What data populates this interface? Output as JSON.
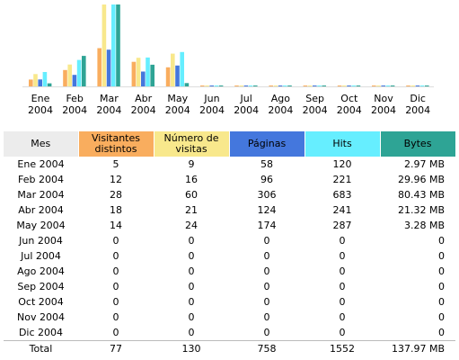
{
  "colors": {
    "visitors": "#f9ad5e",
    "visits": "#f8e88c",
    "pages": "#4477dd",
    "hits": "#66eeff",
    "bytes": "#2ea495",
    "month_header": "#ececec"
  },
  "chart_data": {
    "type": "bar",
    "categories": [
      "Ene 2004",
      "Feb 2004",
      "Mar 2004",
      "Abr 2004",
      "May 2004",
      "Jun 2004",
      "Jul 2004",
      "Ago 2004",
      "Sep 2004",
      "Oct 2004",
      "Nov 2004",
      "Dic 2004"
    ],
    "category_lines": [
      [
        "Ene",
        "2004"
      ],
      [
        "Feb",
        "2004"
      ],
      [
        "Mar",
        "2004"
      ],
      [
        "Abr",
        "2004"
      ],
      [
        "May",
        "2004"
      ],
      [
        "Jun",
        "2004"
      ],
      [
        "Jul",
        "2004"
      ],
      [
        "Ago",
        "2004"
      ],
      [
        "Sep",
        "2004"
      ],
      [
        "Oct",
        "2004"
      ],
      [
        "Nov",
        "2004"
      ],
      [
        "Dic",
        "2004"
      ]
    ],
    "series": [
      {
        "key": "visitors",
        "values": [
          5,
          12,
          28,
          18,
          14,
          0,
          0,
          0,
          0,
          0,
          0,
          0
        ]
      },
      {
        "key": "visits",
        "values": [
          9,
          16,
          60,
          21,
          24,
          0,
          0,
          0,
          0,
          0,
          0,
          0
        ]
      },
      {
        "key": "pages",
        "values": [
          58,
          96,
          306,
          124,
          174,
          0,
          0,
          0,
          0,
          0,
          0,
          0
        ]
      },
      {
        "key": "hits",
        "values": [
          120,
          221,
          683,
          241,
          287,
          0,
          0,
          0,
          0,
          0,
          0,
          0
        ]
      },
      {
        "key": "bytes",
        "values": [
          2.97,
          29.96,
          80.43,
          21.32,
          3.28,
          0,
          0,
          0,
          0,
          0,
          0,
          0
        ]
      }
    ],
    "scale_groups": [
      [
        "visitors",
        "visits"
      ],
      [
        "pages",
        "hits"
      ],
      [
        "bytes"
      ]
    ]
  },
  "table": {
    "headers": {
      "month": "Mes",
      "visitors": "Visitantes distintos",
      "visits": "Número de visitas",
      "pages": "Páginas",
      "hits": "Hits",
      "bytes": "Bytes"
    },
    "rows": [
      {
        "month": "Ene 2004",
        "visitors": "5",
        "visits": "9",
        "pages": "58",
        "hits": "120",
        "bytes": "2.97 MB"
      },
      {
        "month": "Feb 2004",
        "visitors": "12",
        "visits": "16",
        "pages": "96",
        "hits": "221",
        "bytes": "29.96 MB"
      },
      {
        "month": "Mar 2004",
        "visitors": "28",
        "visits": "60",
        "pages": "306",
        "hits": "683",
        "bytes": "80.43 MB"
      },
      {
        "month": "Abr 2004",
        "visitors": "18",
        "visits": "21",
        "pages": "124",
        "hits": "241",
        "bytes": "21.32 MB"
      },
      {
        "month": "May 2004",
        "visitors": "14",
        "visits": "24",
        "pages": "174",
        "hits": "287",
        "bytes": "3.28 MB"
      },
      {
        "month": "Jun 2004",
        "visitors": "0",
        "visits": "0",
        "pages": "0",
        "hits": "0",
        "bytes": "0"
      },
      {
        "month": "Jul 2004",
        "visitors": "0",
        "visits": "0",
        "pages": "0",
        "hits": "0",
        "bytes": "0"
      },
      {
        "month": "Ago 2004",
        "visitors": "0",
        "visits": "0",
        "pages": "0",
        "hits": "0",
        "bytes": "0"
      },
      {
        "month": "Sep 2004",
        "visitors": "0",
        "visits": "0",
        "pages": "0",
        "hits": "0",
        "bytes": "0"
      },
      {
        "month": "Oct 2004",
        "visitors": "0",
        "visits": "0",
        "pages": "0",
        "hits": "0",
        "bytes": "0"
      },
      {
        "month": "Nov 2004",
        "visitors": "0",
        "visits": "0",
        "pages": "0",
        "hits": "0",
        "bytes": "0"
      },
      {
        "month": "Dic 2004",
        "visitors": "0",
        "visits": "0",
        "pages": "0",
        "hits": "0",
        "bytes": "0"
      }
    ],
    "total": {
      "month": "Total",
      "visitors": "77",
      "visits": "130",
      "pages": "758",
      "hits": "1552",
      "bytes": "137.97 MB"
    }
  }
}
